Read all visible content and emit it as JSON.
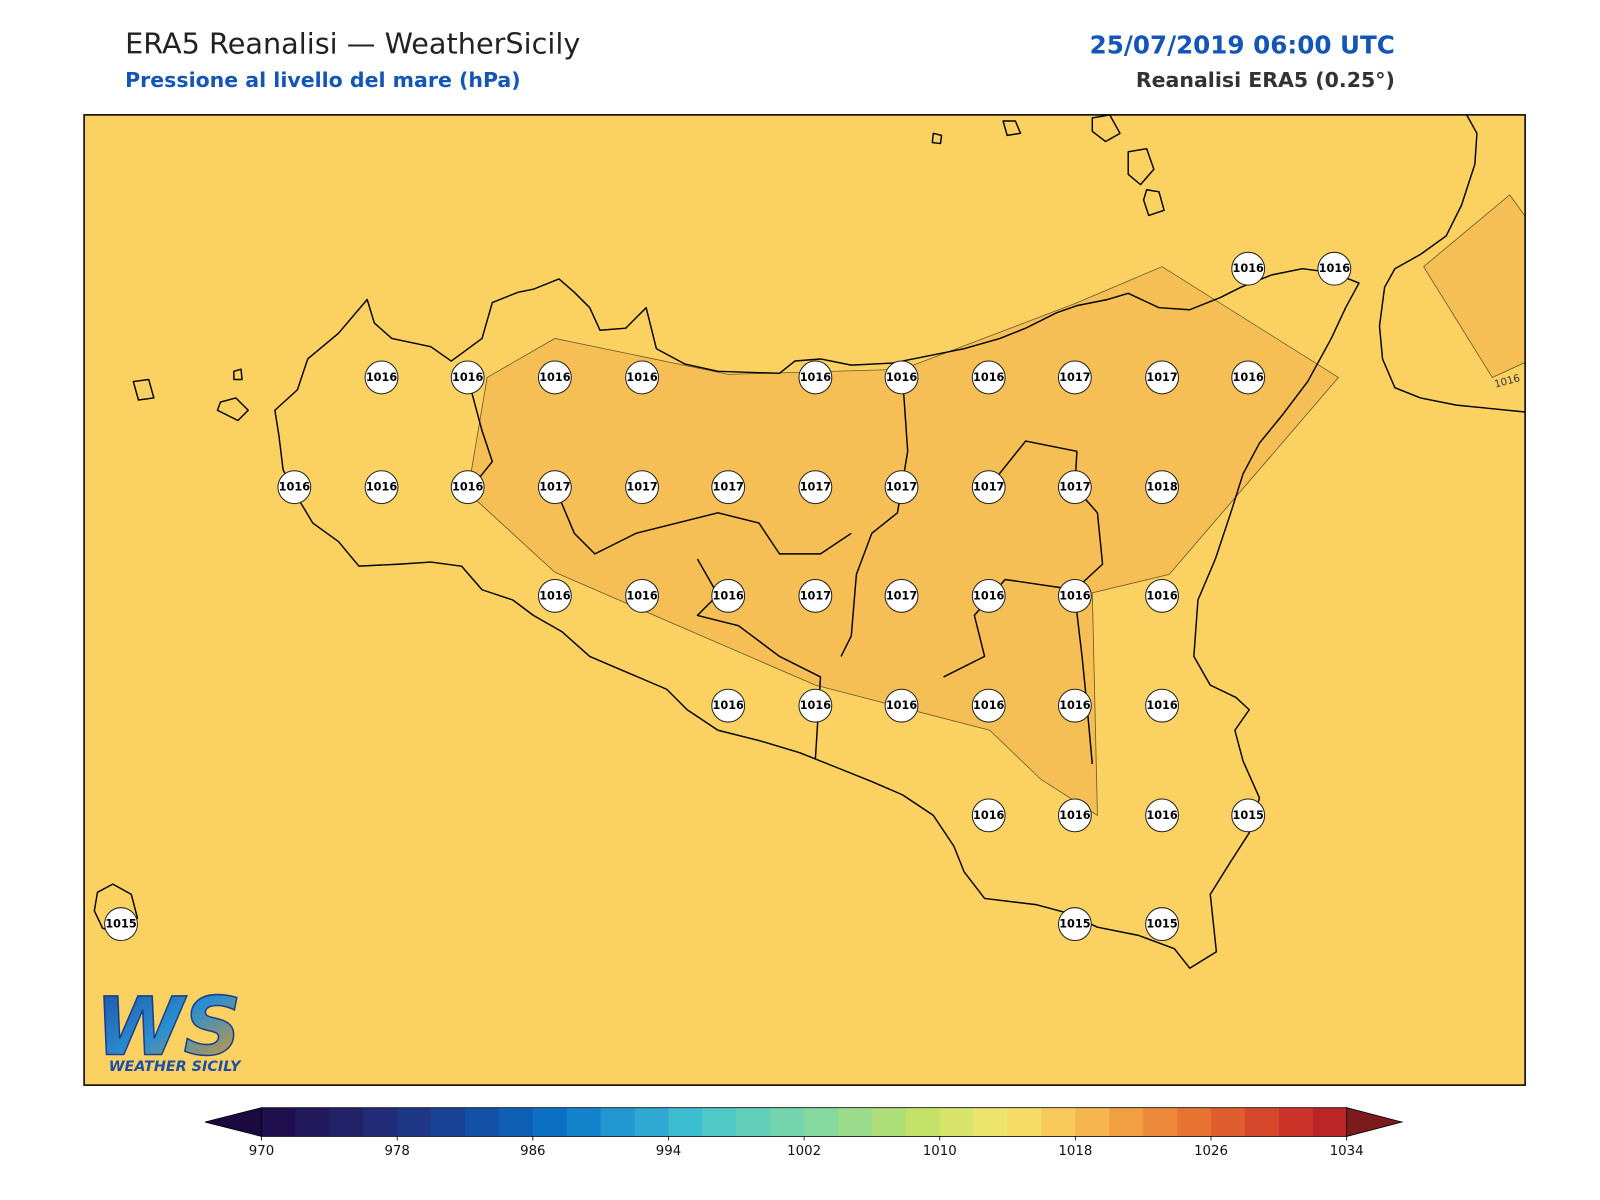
{
  "header": {
    "title": "ERA5 Reanalisi — WeatherSicily",
    "subtitle": "Pressione al livello del mare (hPa)",
    "date": "25/07/2019 06:00 UTC",
    "source": "Reanalisi ERA5 (0.25°)"
  },
  "map": {
    "background_color": "#fbd262",
    "contour_fill_color": "#f6bf55",
    "contour_label": "1016"
  },
  "stations": [
    1016,
    1016,
    1016,
    1016,
    1016,
    1016,
    1016,
    1016,
    1016,
    1017,
    1017,
    1016,
    1016,
    1016,
    1016,
    1017,
    1017,
    1017,
    1017,
    1017,
    1017,
    1017,
    1018,
    1016,
    1016,
    1016,
    1017,
    1017,
    1016,
    1016,
    1016,
    1016,
    1016,
    1016,
    1016,
    1016,
    1016,
    1016,
    1016,
    1016,
    1015,
    1015,
    1015,
    1015
  ],
  "logo": {
    "mark": "WS",
    "text": "WEATHER SICILY"
  },
  "colorbar": {
    "ticks": [
      970,
      978,
      986,
      994,
      1002,
      1010,
      1018,
      1026,
      1034
    ],
    "under_color": "#1a0a3f",
    "over_color": "#7d1a1c",
    "colors": [
      "#1f0f4f",
      "#221a5c",
      "#232268",
      "#222c78",
      "#1f3787",
      "#194396",
      "#1451a6",
      "#0f5fb5",
      "#0b6fc4",
      "#1483cc",
      "#2196cf",
      "#2fa9d1",
      "#3ebdd0",
      "#4fc8c6",
      "#62cfbb",
      "#73d4ae",
      "#86d99e",
      "#9adc8c",
      "#aedf78",
      "#c3e267",
      "#d8e56a",
      "#ece46c",
      "#f6dc67",
      "#f8ca5c",
      "#f6b54f",
      "#f29f44",
      "#ed893b",
      "#e77333",
      "#df5d2e",
      "#d6472b",
      "#cb3329",
      "#bb2527"
    ]
  }
}
